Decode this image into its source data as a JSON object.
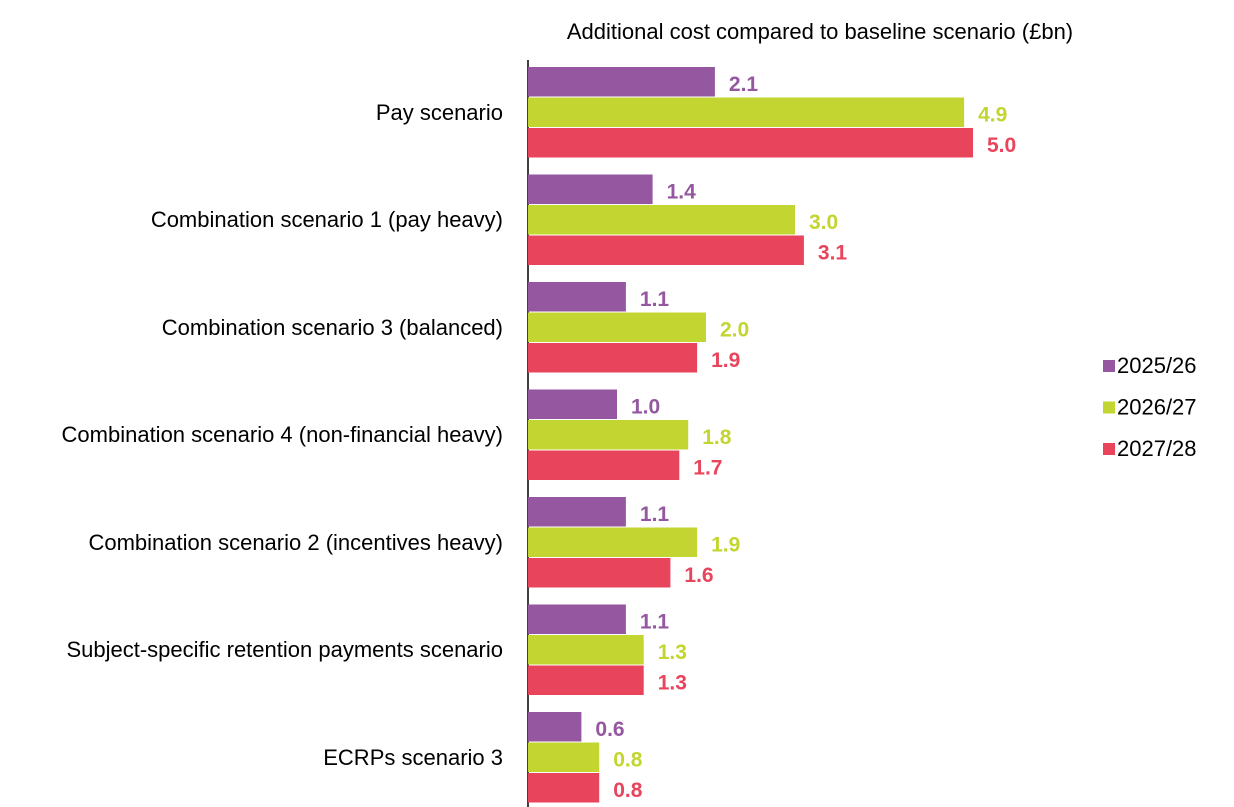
{
  "chart_data": {
    "type": "bar",
    "orientation": "horizontal",
    "title": "Additional cost compared to baseline scenario (£bn)",
    "categories": [
      "Pay scenario",
      "Combination scenario 1 (pay heavy)",
      "Combination scenario 3 (balanced)",
      "Combination scenario 4 (non-financial heavy)",
      "Combination scenario 2 (incentives heavy)",
      "Subject-specific retention payments scenario",
      "ECRPs scenario 3"
    ],
    "series": [
      {
        "name": "2025/26",
        "color": "#9457a0",
        "values": [
          2.1,
          1.4,
          1.1,
          1,
          1.1,
          1.1,
          0.6
        ],
        "value_labels": [
          "2.1",
          "1.4",
          "1.1",
          "1.0",
          "1.1",
          "1.1",
          "0.6"
        ]
      },
      {
        "name": "2026/27",
        "color": "#c3d530",
        "values": [
          4.9,
          3,
          2,
          1.8,
          1.9,
          1.3,
          0.8
        ],
        "value_labels": [
          "4.9",
          "3.0",
          "2.0",
          "1.8",
          "1.9",
          "1.3",
          "0.8"
        ]
      },
      {
        "name": "2027/28",
        "color": "#e8445c",
        "values": [
          5,
          3.1,
          1.9,
          1.7,
          1.6,
          1.3,
          0.8
        ],
        "value_labels": [
          "5.0",
          "3.1",
          "1.9",
          "1.7",
          "1.6",
          "1.3",
          "0.8"
        ]
      }
    ],
    "xlim": [
      0,
      6
    ],
    "legend": "right"
  }
}
